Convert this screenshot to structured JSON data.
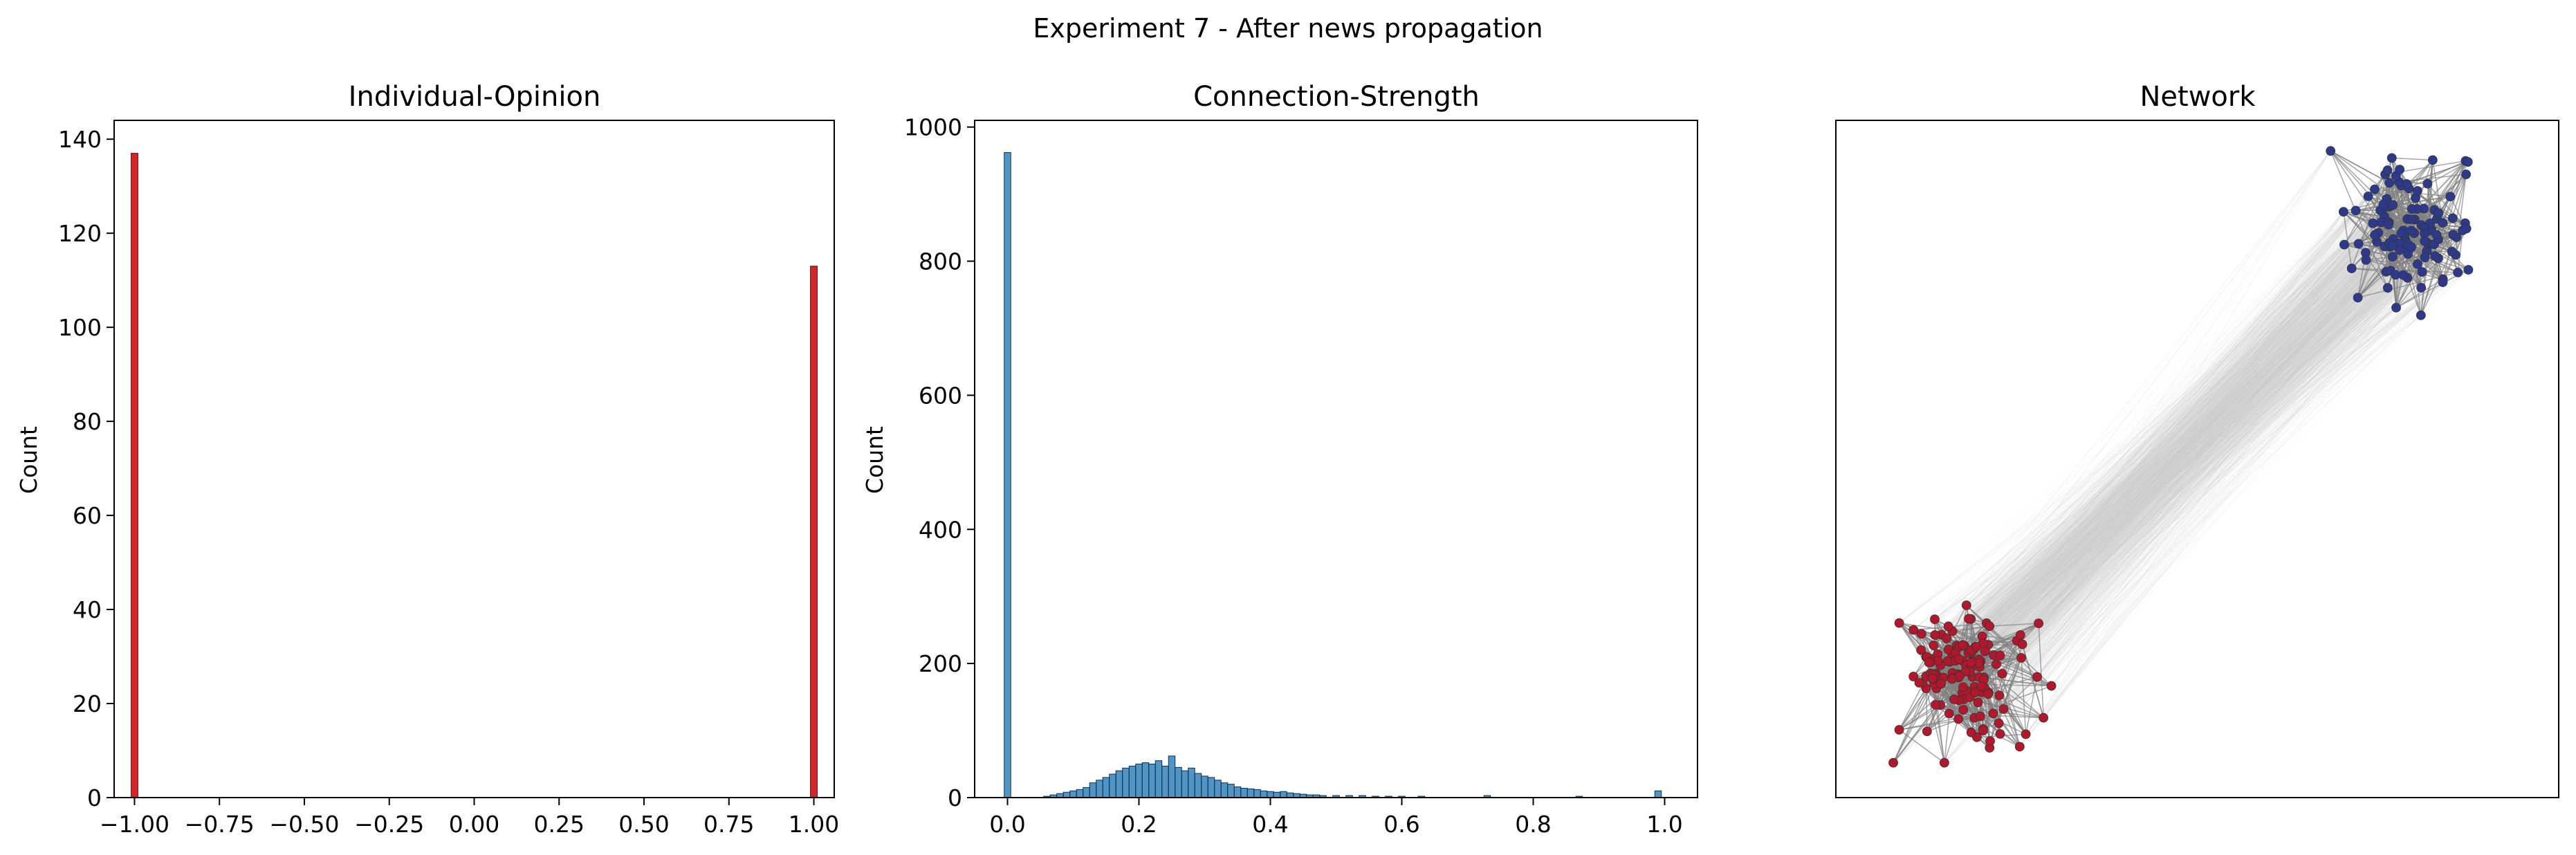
{
  "figure": {
    "suptitle": "Experiment 7 - After news propagation"
  },
  "colors": {
    "opinion_bar": "#d62728",
    "strength_bar": "#1f77b4",
    "red_node": "#b2182b",
    "blue_node": "#2d3a8c",
    "edge": "#808080",
    "cross_edge": "#cccccc"
  },
  "chart_data": [
    {
      "type": "bar",
      "title": "Individual-Opinion",
      "xlabel": "",
      "ylabel": "Count",
      "xlim": [
        -1.06,
        1.06
      ],
      "ylim": [
        0,
        144
      ],
      "xticks": [
        -1.0,
        -0.75,
        -0.5,
        -0.25,
        0.0,
        0.25,
        0.5,
        0.75,
        1.0
      ],
      "xtick_labels": [
        "−1.00",
        "−0.75",
        "−0.50",
        "−0.25",
        "0.00",
        "0.25",
        "0.50",
        "0.75",
        "1.00"
      ],
      "yticks": [
        0,
        20,
        40,
        60,
        80,
        100,
        120,
        140
      ],
      "ytick_labels": [
        "0",
        "20",
        "40",
        "60",
        "80",
        "100",
        "120",
        "140"
      ],
      "bin_width": 0.02,
      "bars": [
        {
          "x": -1.0,
          "value": 137
        },
        {
          "x": 1.0,
          "value": 113
        }
      ]
    },
    {
      "type": "bar",
      "title": "Connection-Strength",
      "xlabel": "",
      "ylabel": "Count",
      "xlim": [
        -0.05,
        1.05
      ],
      "ylim": [
        0,
        1010
      ],
      "xticks": [
        0.0,
        0.2,
        0.4,
        0.6,
        0.8,
        1.0
      ],
      "xtick_labels": [
        "0.0",
        "0.2",
        "0.4",
        "0.6",
        "0.8",
        "1.0"
      ],
      "yticks": [
        0,
        200,
        400,
        600,
        800,
        1000
      ],
      "ytick_labels": [
        "0",
        "200",
        "400",
        "600",
        "800",
        "1000"
      ],
      "bin_width": 0.01,
      "bins": [
        0.0,
        0.06,
        0.07,
        0.08,
        0.09,
        0.1,
        0.11,
        0.12,
        0.13,
        0.14,
        0.15,
        0.16,
        0.17,
        0.18,
        0.19,
        0.2,
        0.21,
        0.22,
        0.23,
        0.24,
        0.25,
        0.26,
        0.27,
        0.28,
        0.29,
        0.3,
        0.31,
        0.32,
        0.33,
        0.34,
        0.35,
        0.36,
        0.37,
        0.38,
        0.39,
        0.4,
        0.41,
        0.42,
        0.43,
        0.44,
        0.45,
        0.46,
        0.47,
        0.48,
        0.5,
        0.52,
        0.54,
        0.56,
        0.58,
        0.6,
        0.63,
        0.73,
        0.87,
        0.99
      ],
      "values": [
        962,
        2,
        4,
        6,
        8,
        10,
        12,
        15,
        22,
        26,
        30,
        35,
        40,
        44,
        47,
        50,
        52,
        50,
        55,
        47,
        62,
        45,
        40,
        44,
        36,
        32,
        30,
        26,
        22,
        20,
        16,
        14,
        13,
        12,
        10,
        9,
        8,
        9,
        7,
        6,
        5,
        4,
        4,
        3,
        3,
        3,
        3,
        2,
        2,
        2,
        2,
        3,
        2,
        10
      ]
    },
    {
      "type": "network",
      "title": "Network",
      "groups": [
        {
          "opinion": -1.0,
          "count": 137
        },
        {
          "opinion": 1.0,
          "count": 113
        }
      ]
    }
  ]
}
